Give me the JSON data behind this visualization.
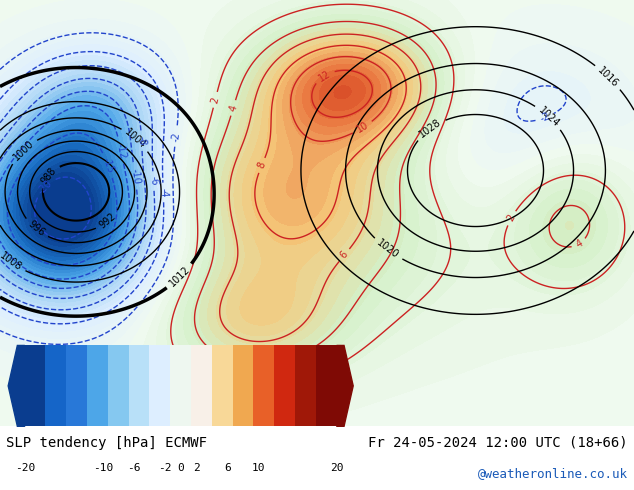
{
  "title_left": "SLP tendency [hPa] ECMWF",
  "title_right": "Fr 24-05-2024 12:00 UTC (18+66)",
  "credit": "@weatheronline.co.uk",
  "colorbar_ticks": [
    -20,
    -10,
    -6,
    -2,
    0,
    2,
    6,
    10,
    20
  ],
  "colorbar_colors_left": [
    "#0a3d8f",
    "#1a6fc4",
    "#4da6e8",
    "#a8d4f5",
    "#ddeeff"
  ],
  "colorbar_colors_right": [
    "#fff0e0",
    "#f5b87a",
    "#e8603a",
    "#c42010",
    "#7f0a05"
  ],
  "bg_color": "#ffffff",
  "map_bg": "#e8f4e8",
  "label_font_size": 10,
  "credit_color": "#1a5ab8",
  "figsize": [
    6.34,
    4.9
  ],
  "dpi": 100
}
